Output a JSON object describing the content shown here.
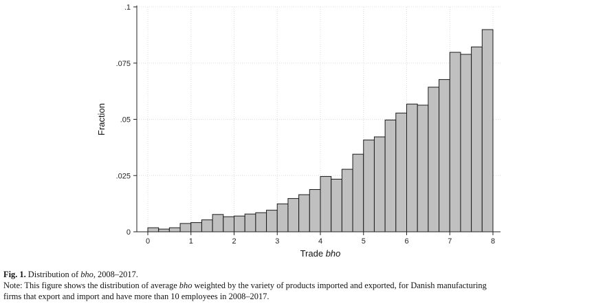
{
  "chart_data": {
    "type": "bar",
    "xlabel_prefix": "Trade ",
    "xlabel_italic": "bho",
    "ylabel": "Fraction",
    "xlim": [
      0,
      8
    ],
    "ylim": [
      0,
      0.1
    ],
    "bin_width": 0.25,
    "x_ticks": [
      {
        "value": 0,
        "label": "0"
      },
      {
        "value": 1,
        "label": "1"
      },
      {
        "value": 2,
        "label": "2"
      },
      {
        "value": 3,
        "label": "3"
      },
      {
        "value": 4,
        "label": "4"
      },
      {
        "value": 5,
        "label": "5"
      },
      {
        "value": 6,
        "label": "6"
      },
      {
        "value": 7,
        "label": "7"
      },
      {
        "value": 8,
        "label": "8"
      }
    ],
    "y_ticks": [
      {
        "value": 0,
        "label": "0"
      },
      {
        "value": 0.025,
        "label": ".025"
      },
      {
        "value": 0.05,
        "label": ".05"
      },
      {
        "value": 0.075,
        "label": ".075"
      },
      {
        "value": 0.1,
        "label": ".1"
      }
    ],
    "grid": true,
    "bar_color": "#c0c0c0",
    "bar_edge_color": "#1a1a1a",
    "bins": [
      {
        "x0": 0.0,
        "value": 0.0018
      },
      {
        "x0": 0.25,
        "value": 0.0012
      },
      {
        "x0": 0.5,
        "value": 0.0018
      },
      {
        "x0": 0.75,
        "value": 0.0037
      },
      {
        "x0": 1.0,
        "value": 0.0041
      },
      {
        "x0": 1.25,
        "value": 0.0053
      },
      {
        "x0": 1.5,
        "value": 0.0077
      },
      {
        "x0": 1.75,
        "value": 0.0067
      },
      {
        "x0": 2.0,
        "value": 0.007
      },
      {
        "x0": 2.25,
        "value": 0.0079
      },
      {
        "x0": 2.5,
        "value": 0.0085
      },
      {
        "x0": 2.75,
        "value": 0.0096
      },
      {
        "x0": 3.0,
        "value": 0.0124
      },
      {
        "x0": 3.25,
        "value": 0.0148
      },
      {
        "x0": 3.5,
        "value": 0.0165
      },
      {
        "x0": 3.75,
        "value": 0.0188
      },
      {
        "x0": 4.0,
        "value": 0.0246
      },
      {
        "x0": 4.25,
        "value": 0.0234
      },
      {
        "x0": 4.5,
        "value": 0.0278
      },
      {
        "x0": 4.75,
        "value": 0.0345
      },
      {
        "x0": 5.0,
        "value": 0.0408
      },
      {
        "x0": 5.25,
        "value": 0.0422
      },
      {
        "x0": 5.5,
        "value": 0.0497
      },
      {
        "x0": 5.75,
        "value": 0.0528
      },
      {
        "x0": 6.0,
        "value": 0.0568
      },
      {
        "x0": 6.25,
        "value": 0.0563
      },
      {
        "x0": 6.5,
        "value": 0.0643
      },
      {
        "x0": 6.75,
        "value": 0.0677
      },
      {
        "x0": 7.0,
        "value": 0.0798
      },
      {
        "x0": 7.25,
        "value": 0.0789
      },
      {
        "x0": 7.5,
        "value": 0.0822
      },
      {
        "x0": 7.75,
        "value": 0.0899
      }
    ]
  },
  "caption": {
    "fig_label": "Fig. 1.",
    "title_pre": " Distribution of ",
    "title_ital": "bho",
    "title_post": ", 2008–2017.",
    "note_pre": "Note: This figure shows the distribution of average ",
    "note_ital": "bho",
    "note_post": " weighted by the variety of products imported and exported, for Danish manufacturing",
    "note_line2": "firms that export and import and have more than 10 employees in 2008–2017."
  }
}
